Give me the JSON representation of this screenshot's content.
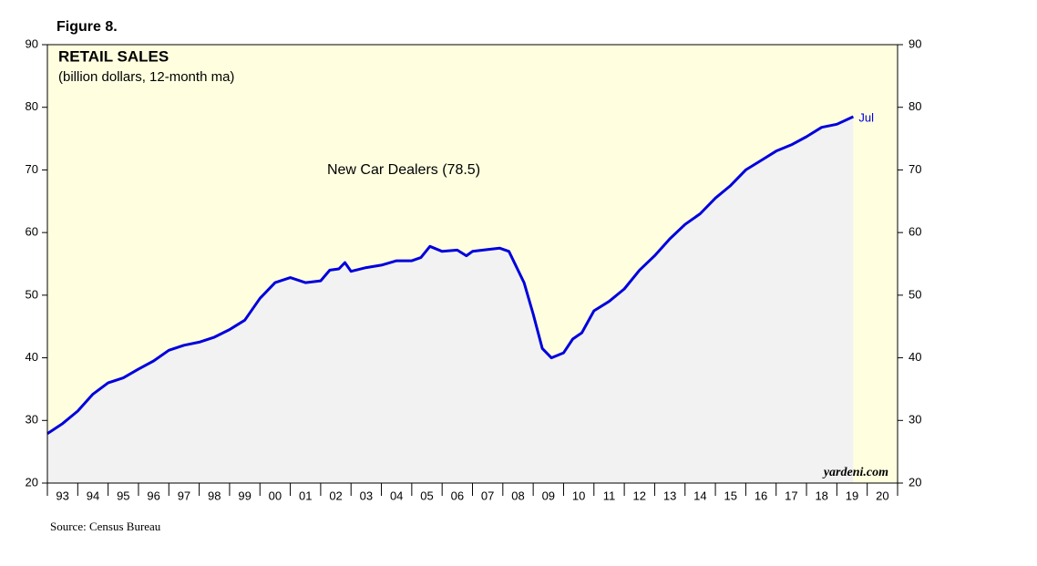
{
  "chart_data": {
    "type": "line",
    "figure_label": "Figure 8.",
    "title": "RETAIL SALES",
    "subtitle": "(billion dollars, 12-month ma)",
    "annotation": "New Car Dealers (78.5)",
    "end_label": "Jul",
    "watermark": "yardeni.com",
    "source": "Source: Census Bureau",
    "x": [
      1993.0,
      1993.5,
      1994.0,
      1994.5,
      1995.0,
      1995.5,
      1996.0,
      1996.5,
      1997.0,
      1997.5,
      1998.0,
      1998.5,
      1999.0,
      1999.5,
      2000.0,
      2000.5,
      2001.0,
      2001.5,
      2002.0,
      2002.3,
      2002.6,
      2002.8,
      2003.0,
      2003.5,
      2004.0,
      2004.5,
      2005.0,
      2005.3,
      2005.6,
      2006.0,
      2006.5,
      2006.8,
      2007.0,
      2007.5,
      2007.9,
      2008.2,
      2008.7,
      2009.0,
      2009.3,
      2009.6,
      2010.0,
      2010.3,
      2010.6,
      2011.0,
      2011.5,
      2012.0,
      2012.5,
      2013.0,
      2013.5,
      2014.0,
      2014.5,
      2015.0,
      2015.5,
      2016.0,
      2016.5,
      2017.0,
      2017.5,
      2018.0,
      2018.5,
      2019.0,
      2019.54
    ],
    "series": [
      {
        "name": "New Car Dealers",
        "color": "#0000dd",
        "values": [
          27.9,
          29.5,
          31.5,
          34.2,
          36.0,
          36.8,
          38.2,
          39.5,
          41.2,
          42.0,
          42.5,
          43.3,
          44.5,
          46.0,
          49.5,
          52.0,
          52.8,
          52.0,
          52.3,
          54.0,
          54.2,
          55.2,
          53.8,
          54.4,
          54.8,
          55.5,
          55.5,
          56.0,
          57.8,
          57.0,
          57.2,
          56.3,
          57.0,
          57.3,
          57.5,
          57.0,
          52.0,
          47.0,
          41.5,
          40.0,
          40.8,
          43.0,
          44.0,
          47.5,
          49.0,
          51.0,
          54.0,
          56.3,
          59.0,
          61.3,
          63.0,
          65.5,
          67.5,
          70.0,
          71.5,
          73.0,
          74.0,
          75.3,
          76.8,
          77.3,
          78.5
        ]
      }
    ],
    "area_color": "#f2f2f2",
    "background": "#ffffe0",
    "xlim": [
      1993,
      2021
    ],
    "xticks": [
      {
        "value": 1993.5,
        "label": "93"
      },
      {
        "value": 1994.5,
        "label": "94"
      },
      {
        "value": 1995.5,
        "label": "95"
      },
      {
        "value": 1996.5,
        "label": "96"
      },
      {
        "value": 1997.5,
        "label": "97"
      },
      {
        "value": 1998.5,
        "label": "98"
      },
      {
        "value": 1999.5,
        "label": "99"
      },
      {
        "value": 2000.5,
        "label": "00"
      },
      {
        "value": 2001.5,
        "label": "01"
      },
      {
        "value": 2002.5,
        "label": "02"
      },
      {
        "value": 2003.5,
        "label": "03"
      },
      {
        "value": 2004.5,
        "label": "04"
      },
      {
        "value": 2005.5,
        "label": "05"
      },
      {
        "value": 2006.5,
        "label": "06"
      },
      {
        "value": 2007.5,
        "label": "07"
      },
      {
        "value": 2008.5,
        "label": "08"
      },
      {
        "value": 2009.5,
        "label": "09"
      },
      {
        "value": 2010.5,
        "label": "10"
      },
      {
        "value": 2011.5,
        "label": "11"
      },
      {
        "value": 2012.5,
        "label": "12"
      },
      {
        "value": 2013.5,
        "label": "13"
      },
      {
        "value": 2014.5,
        "label": "14"
      },
      {
        "value": 2015.5,
        "label": "15"
      },
      {
        "value": 2016.5,
        "label": "16"
      },
      {
        "value": 2017.5,
        "label": "17"
      },
      {
        "value": 2018.5,
        "label": "18"
      },
      {
        "value": 2019.5,
        "label": "19"
      },
      {
        "value": 2020.5,
        "label": "20"
      }
    ],
    "ylim": [
      20,
      90
    ],
    "yticks": [
      20,
      30,
      40,
      50,
      60,
      70,
      80,
      90
    ]
  }
}
